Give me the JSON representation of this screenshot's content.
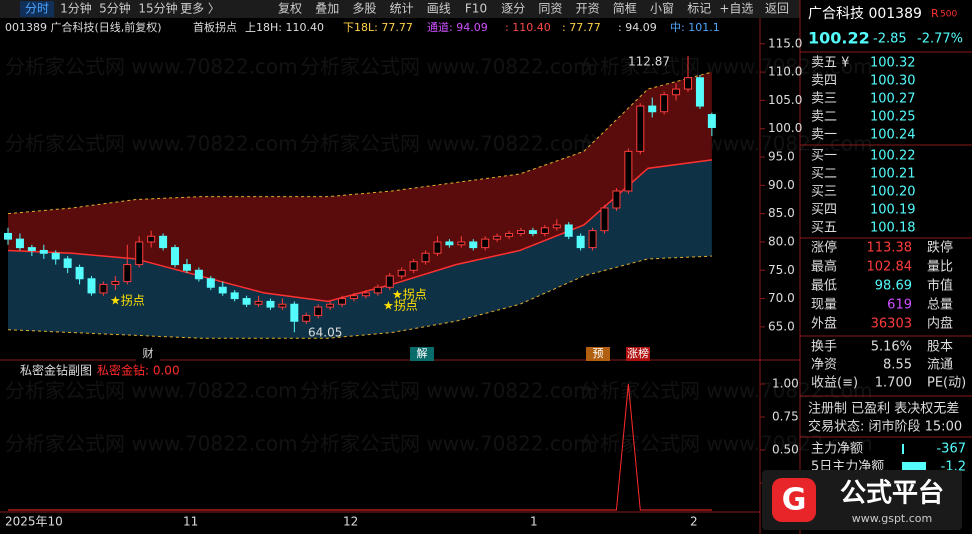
{
  "toolbar": {
    "tabs": [
      "分时",
      "1分钟",
      "5分钟",
      "15分钟",
      "更多 〉"
    ],
    "buttons": [
      "复权",
      "叠加",
      "多股",
      "统计",
      "画线",
      "F10",
      "逐分",
      "同资",
      "开资",
      "简框",
      "小窗",
      "标记",
      "+自选"
    ],
    "back": "返回"
  },
  "info": {
    "code_name": "001389 广合科技(日线,前复权)",
    "indicator": "首板拐点",
    "upper": "上18H: 110.40",
    "lower": "下18L: 77.77",
    "channel": "通道: 94.09",
    "v1": ": 110.40",
    "v2": ": 77.77",
    "v3": ": 94.09",
    "mid": "中: 101.1"
  },
  "watermark": {
    "text": "分析家公式网 www.70822.com",
    "site": "www.gspt.com"
  },
  "chart_data": [
    {
      "type": "candlestick",
      "ylim": [
        61.8,
        119.2
      ],
      "yticks": [
        {
          "value": 115,
          "label": "115.0"
        },
        {
          "value": 110,
          "label": "110.0"
        },
        {
          "value": 105,
          "label": "105.0"
        },
        {
          "value": 100,
          "label": "100.0"
        },
        {
          "value": 95,
          "label": "95.0"
        },
        {
          "value": 90,
          "label": "90.0"
        },
        {
          "value": 85,
          "label": "85.0"
        },
        {
          "value": 80,
          "label": "80.0"
        },
        {
          "value": 75,
          "label": "75.0"
        },
        {
          "value": 70,
          "label": "70.0"
        },
        {
          "value": 65,
          "label": "65.0"
        }
      ],
      "candles": [
        [
          81.5,
          82.5,
          79.5,
          80.5
        ],
        [
          80.5,
          81.5,
          78.5,
          79
        ],
        [
          79,
          79.5,
          77.5,
          78.5
        ],
        [
          78.5,
          79.5,
          77,
          78
        ],
        [
          78,
          78.5,
          76,
          77
        ],
        [
          77,
          77.5,
          74.5,
          75.5
        ],
        [
          75.5,
          76,
          72.5,
          73.5
        ],
        [
          73.5,
          74,
          70.5,
          71
        ],
        [
          71,
          73,
          70.5,
          72.5
        ],
        [
          72.5,
          74,
          71.5,
          73
        ],
        [
          73,
          79.5,
          72.5,
          76
        ],
        [
          76,
          81,
          75.5,
          80
        ],
        [
          80,
          82,
          79,
          81
        ],
        [
          81,
          81.5,
          78.5,
          79
        ],
        [
          79,
          79.5,
          75.5,
          76
        ],
        [
          76,
          77,
          74.5,
          75
        ],
        [
          75,
          75.5,
          73,
          73.5
        ],
        [
          73.5,
          74,
          71.5,
          72
        ],
        [
          72,
          73,
          70.5,
          71
        ],
        [
          71,
          71.5,
          69.5,
          70
        ],
        [
          70,
          70.5,
          68.5,
          69
        ],
        [
          69,
          70.5,
          68.5,
          69.5
        ],
        [
          69.5,
          70,
          68,
          68.5
        ],
        [
          68.5,
          70,
          68,
          69
        ],
        [
          69,
          69.5,
          64.05,
          66
        ],
        [
          66,
          67.5,
          65.5,
          67
        ],
        [
          67,
          69,
          66.5,
          68.5
        ],
        [
          68.5,
          69.5,
          68,
          69
        ],
        [
          69,
          70.5,
          68.5,
          70
        ],
        [
          70,
          71,
          69.5,
          70.5
        ],
        [
          70.5,
          71.5,
          70,
          71
        ],
        [
          71,
          72.5,
          70.5,
          72
        ],
        [
          72,
          74.5,
          71.5,
          74
        ],
        [
          74,
          75.5,
          73.5,
          75
        ],
        [
          75,
          77,
          74.5,
          76.5
        ],
        [
          76.5,
          78.5,
          76,
          78
        ],
        [
          78,
          81,
          77.5,
          80
        ],
        [
          80,
          80.5,
          79,
          79.5
        ],
        [
          79.5,
          81,
          79,
          80
        ],
        [
          80,
          80.5,
          78.5,
          79
        ],
        [
          79,
          81,
          78.5,
          80.5
        ],
        [
          80.5,
          81.5,
          80,
          81
        ],
        [
          81,
          82,
          80.5,
          81.5
        ],
        [
          81.5,
          82.5,
          81,
          82
        ],
        [
          82,
          82.5,
          81,
          81.5
        ],
        [
          81.5,
          83,
          81,
          82.5
        ],
        [
          82.5,
          84,
          82,
          83
        ],
        [
          83,
          83.5,
          80.5,
          81
        ],
        [
          81,
          81.5,
          78.5,
          79
        ],
        [
          79,
          82.5,
          78.5,
          82
        ],
        [
          82,
          86.5,
          81.5,
          86
        ],
        [
          86,
          89.5,
          85.5,
          89
        ],
        [
          89,
          96.5,
          88.5,
          96
        ],
        [
          96,
          104.5,
          95.5,
          104
        ],
        [
          104,
          105.5,
          102,
          103
        ],
        [
          103,
          106.5,
          102.5,
          106
        ],
        [
          106,
          108,
          105,
          107
        ],
        [
          107,
          112.87,
          106.5,
          109
        ],
        [
          109,
          109.5,
          103.5,
          104
        ],
        [
          102.5,
          102.84,
          98.69,
          100.22
        ]
      ],
      "channel": {
        "upper": [
          85,
          86,
          87.5,
          88,
          88,
          88,
          89,
          90.5,
          92,
          96,
          107,
          110
        ],
        "mid": [
          78.5,
          78,
          77,
          74,
          71,
          69.5,
          72.5,
          76,
          78.5,
          83,
          93,
          94.5
        ],
        "lower": [
          64.5,
          64,
          63.5,
          63,
          63,
          63,
          64,
          66,
          69,
          74,
          77,
          77.5
        ]
      },
      "annotations": {
        "high": "112.87",
        "low": "64.05",
        "turn": "★拐点",
        "markers": [
          "财",
          "解",
          "预",
          "涨榜"
        ]
      },
      "x_labels": [
        "2025年10",
        "11",
        "12",
        "1",
        "2"
      ]
    },
    {
      "type": "line",
      "title": "私密金钻副图",
      "legend": "私密金钻: 0.00",
      "color": "#ff2a2a",
      "ylim": [
        0,
        1.167
      ],
      "yticks": [
        {
          "value": 1,
          "label": "1.00"
        },
        {
          "value": 0.75,
          "label": "0.75"
        },
        {
          "value": 0.5,
          "label": "0.50"
        },
        {
          "value": 0.25,
          "label": "0.25"
        }
      ],
      "values": [
        0,
        0,
        0,
        0,
        0,
        0,
        0,
        0,
        0,
        0,
        0,
        0,
        0,
        0,
        0,
        0,
        0,
        0,
        0,
        0,
        0,
        0,
        0,
        0,
        0,
        0,
        0,
        0,
        0,
        0,
        0,
        0,
        0,
        0,
        0,
        0,
        0,
        0,
        0,
        0,
        0,
        0,
        0,
        0,
        0,
        0,
        0,
        0,
        0,
        0,
        0,
        0,
        1,
        0,
        0,
        0,
        0,
        0,
        0,
        0
      ]
    }
  ],
  "quote": {
    "name": "广合科技 001389",
    "badge": "R",
    "badge_num": "500",
    "price": "100.22",
    "change": "-2.85",
    "pct": "-2.77%",
    "asks": [
      [
        "卖五 ¥",
        "100.32"
      ],
      [
        "卖四",
        "100.30"
      ],
      [
        "卖三",
        "100.27"
      ],
      [
        "卖二",
        "100.25"
      ],
      [
        "卖一",
        "100.24"
      ]
    ],
    "bids": [
      [
        "买一",
        "100.22"
      ],
      [
        "买二",
        "100.21"
      ],
      [
        "买三",
        "100.20"
      ],
      [
        "买四",
        "100.19"
      ],
      [
        "买五",
        "100.18"
      ]
    ],
    "stats": [
      [
        "涨停",
        "113.38",
        "跌停"
      ],
      [
        "最高",
        "102.84",
        "量比"
      ],
      [
        "最低",
        "98.69",
        "市值"
      ],
      [
        "现量",
        "619",
        "总量"
      ],
      [
        "外盘",
        "36303",
        "内盘"
      ]
    ],
    "stats2": [
      [
        "换手",
        "5.16%",
        "股本"
      ],
      [
        "净资",
        "8.55",
        "流通"
      ],
      [
        "收益(≡)",
        "1.700",
        "PE(动)"
      ]
    ],
    "tags": "注册制 已盈利 表决权无差",
    "status": "交易状态: 闭市阶段 15:00",
    "flow": [
      "主力净额",
      "-367"
    ],
    "flow5": [
      "5日主力净额",
      "-1.2"
    ]
  },
  "logo": {
    "text": "公式平台",
    "url": "www.gspt.com"
  }
}
